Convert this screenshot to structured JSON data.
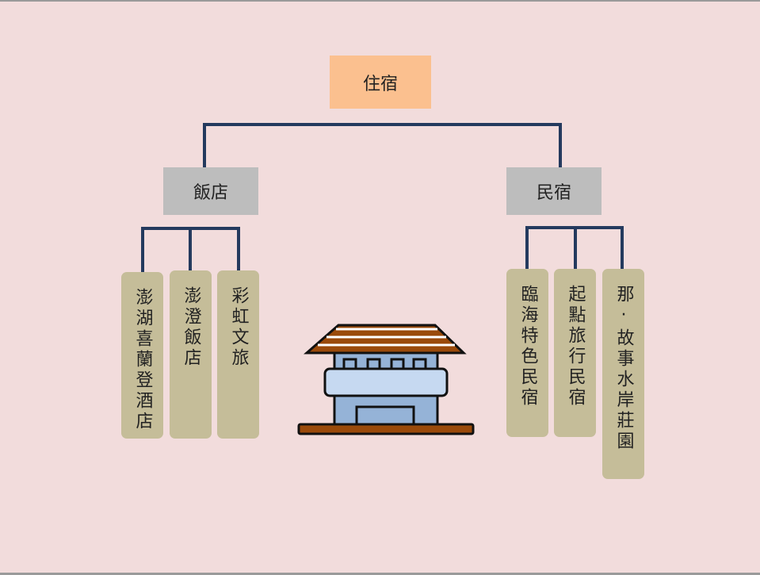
{
  "root": {
    "label": "住宿"
  },
  "categories": [
    {
      "label": "飯店",
      "items": [
        "澎湖喜蘭登酒店",
        "澎澄飯店",
        "彩虹文旅"
      ]
    },
    {
      "label": "民宿",
      "items": [
        "臨海特色民宿",
        "起點旅行民宿",
        "那·故事水岸莊園"
      ]
    }
  ],
  "colors": {
    "background": "#f2dcdc",
    "root_box": "#fbc08f",
    "category_box": "#bdbdbd",
    "leaf_box": "#c5bd99",
    "connector": "#243a5e"
  },
  "illustration": {
    "icon": "building-icon"
  }
}
